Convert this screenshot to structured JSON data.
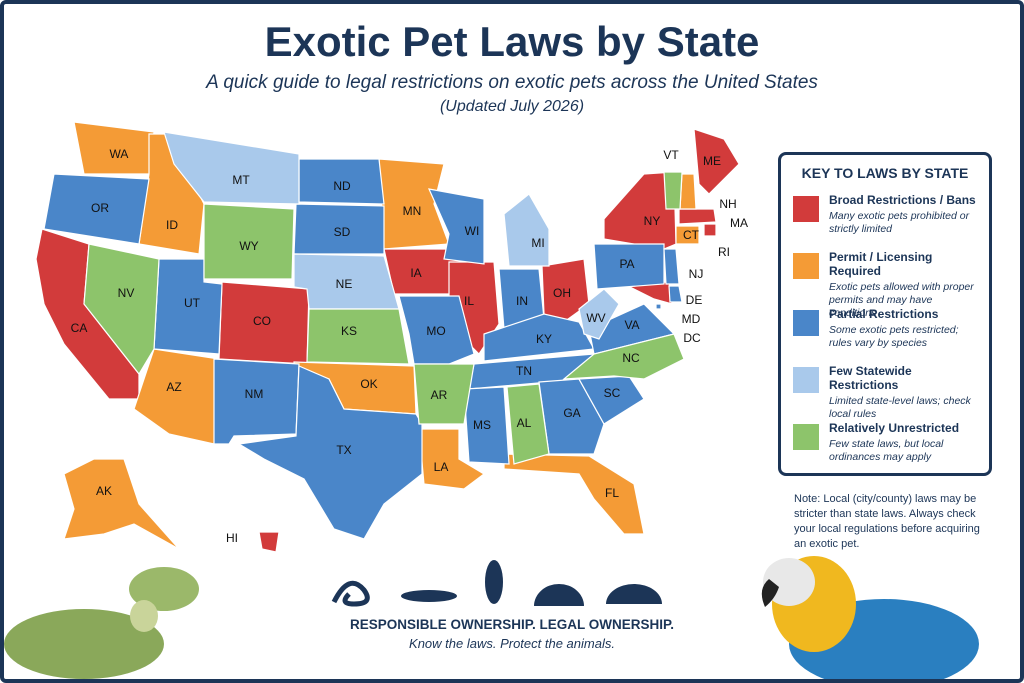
{
  "header": {
    "title": "Exotic Pet Laws by State",
    "subtitle": "A quick guide to legal restrictions on exotic pets across the United States",
    "updated": "(Updated July 2026)"
  },
  "legend": {
    "title": "KEY TO LAWS BY STATE",
    "items": [
      {
        "name": "Broad Restrictions / Bans",
        "description": "Many exotic pets prohibited or strictly limited",
        "color": "#d23b3b",
        "states": [
          "CA",
          "CO",
          "IA",
          "IL",
          "OH",
          "NY",
          "ME",
          "MA",
          "MD",
          "RI",
          "HI"
        ]
      },
      {
        "name": "Permit / Licensing Required",
        "description": "Exotic pets allowed with proper permits and may have conditions",
        "color": "#f49b36",
        "states": [
          "WA",
          "ID",
          "MN",
          "AZ",
          "OK",
          "LA",
          "FL",
          "AK",
          "NH",
          "CT"
        ]
      },
      {
        "name": "Partial Restrictions",
        "description": "Some exotic pets restricted; rules vary by species",
        "color": "#4a86c9",
        "states": [
          "OR",
          "UT",
          "NM",
          "TX",
          "ND",
          "SD",
          "MO",
          "WI",
          "IN",
          "KY",
          "TN",
          "MS",
          "GA",
          "SC",
          "PA",
          "VA",
          "NJ",
          "DE",
          "DC"
        ]
      },
      {
        "name": "Few Statewide Restrictions",
        "description": "Limited state-level laws; check local rules",
        "color": "#a9c9eb",
        "states": [
          "MT",
          "NE",
          "MI",
          "WV"
        ]
      },
      {
        "name": "Relatively Unrestricted",
        "description": "Few state laws, but local ordinances may apply",
        "color": "#8dc46b",
        "states": [
          "NV",
          "WY",
          "KS",
          "AR",
          "AL",
          "NC",
          "VT"
        ]
      }
    ]
  },
  "note": "Note: Local (city/county) laws may be stricter than state laws. Always check your local regulations before acquiring an exotic pet.",
  "footer": {
    "headline": "RESPONSIBLE OWNERSHIP. LEGAL OWNERSHIP.",
    "tagline": "Know the laws. Protect the animals."
  }
}
